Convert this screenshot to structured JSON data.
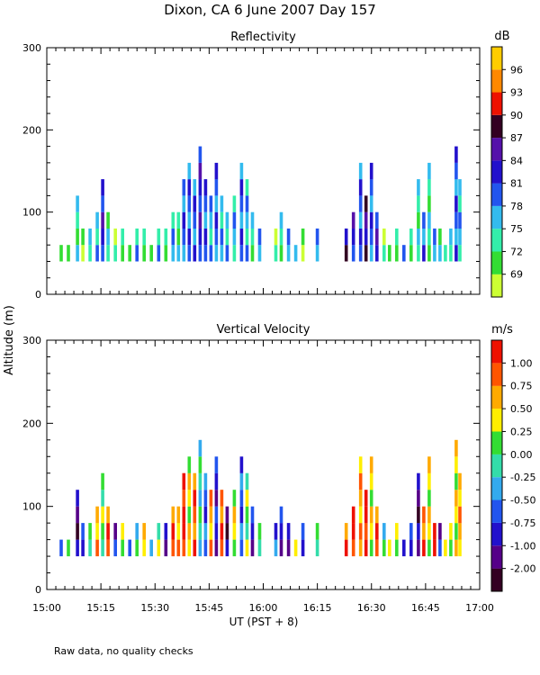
{
  "title": "Dixon, CA  6 June 2007  Day 157",
  "footnote": "Raw data, no quality checks",
  "shared_ylabel": "Altitude (m)",
  "xlabel": "UT  (PST + 8)",
  "chart_data": [
    {
      "type": "heatmap",
      "title": "Reflectivity",
      "ylabel": "Altitude (m)",
      "xlabel": "UT  (PST + 8)",
      "x_range_minutes": [
        900,
        1020
      ],
      "y_range_m": [
        0,
        300
      ],
      "xticks": [
        "15:00",
        "15:15",
        "15:30",
        "15:45",
        "16:00",
        "16:15",
        "16:30",
        "16:45",
        "17:00"
      ],
      "xtick_minutes": [
        900,
        915,
        930,
        945,
        960,
        975,
        990,
        1005,
        1020
      ],
      "yticks": [
        0,
        100,
        200,
        300
      ],
      "colorbar": {
        "units": "dB",
        "labels": [
          "69",
          "72",
          "75",
          "78",
          "81",
          "84",
          "87",
          "90",
          "93",
          "96"
        ],
        "colors": [
          "#ccff33",
          "#33dd33",
          "#33eeaa",
          "#33bbee",
          "#2255ee",
          "#2211cc",
          "#5511aa",
          "#330022",
          "#ee1100",
          "#ff8800",
          "#ffcc00"
        ]
      },
      "echo_columns": [
        {
          "t": 904,
          "top": 60,
          "cat": 2
        },
        {
          "t": 906,
          "top": 60,
          "cat": 1
        },
        {
          "t": 908.5,
          "top": 120,
          "cat": 2
        },
        {
          "t": 910,
          "top": 80,
          "cat": 1
        },
        {
          "t": 912,
          "top": 80,
          "cat": 2
        },
        {
          "t": 914,
          "top": 100,
          "cat": 3
        },
        {
          "t": 915.5,
          "top": 140,
          "cat": 5
        },
        {
          "t": 917,
          "top": 100,
          "cat": 2
        },
        {
          "t": 919,
          "top": 80,
          "cat": 1
        },
        {
          "t": 921,
          "top": 80,
          "cat": 2
        },
        {
          "t": 923,
          "top": 60,
          "cat": 1
        },
        {
          "t": 925,
          "top": 80,
          "cat": 3
        },
        {
          "t": 927,
          "top": 80,
          "cat": 2
        },
        {
          "t": 929,
          "top": 60,
          "cat": 1
        },
        {
          "t": 931,
          "top": 80,
          "cat": 3
        },
        {
          "t": 933,
          "top": 80,
          "cat": 2
        },
        {
          "t": 935,
          "top": 100,
          "cat": 3
        },
        {
          "t": 936.5,
          "top": 100,
          "cat": 2
        },
        {
          "t": 938,
          "top": 140,
          "cat": 4
        },
        {
          "t": 939.5,
          "top": 160,
          "cat": 4
        },
        {
          "t": 941,
          "top": 140,
          "cat": 4
        },
        {
          "t": 942.5,
          "top": 180,
          "cat": 5
        },
        {
          "t": 944,
          "top": 140,
          "cat": 4
        },
        {
          "t": 945.5,
          "top": 120,
          "cat": 3
        },
        {
          "t": 947,
          "top": 160,
          "cat": 4
        },
        {
          "t": 948.5,
          "top": 120,
          "cat": 3
        },
        {
          "t": 950,
          "top": 100,
          "cat": 3
        },
        {
          "t": 952,
          "top": 120,
          "cat": 3
        },
        {
          "t": 954,
          "top": 160,
          "cat": 4
        },
        {
          "t": 955.5,
          "top": 140,
          "cat": 3
        },
        {
          "t": 957,
          "top": 100,
          "cat": 2
        },
        {
          "t": 959,
          "top": 80,
          "cat": 3
        },
        {
          "t": 963.5,
          "top": 80,
          "cat": 1
        },
        {
          "t": 965,
          "top": 100,
          "cat": 2
        },
        {
          "t": 967,
          "top": 80,
          "cat": 3
        },
        {
          "t": 969,
          "top": 60,
          "cat": 2
        },
        {
          "t": 971,
          "top": 80,
          "cat": 1
        },
        {
          "t": 975,
          "top": 80,
          "cat": 3
        },
        {
          "t": 983,
          "top": 80,
          "cat": 6
        },
        {
          "t": 985,
          "top": 100,
          "cat": 5
        },
        {
          "t": 987,
          "top": 160,
          "cat": 4
        },
        {
          "t": 988.5,
          "top": 120,
          "cat": 6
        },
        {
          "t": 990,
          "top": 160,
          "cat": 4
        },
        {
          "t": 991.5,
          "top": 100,
          "cat": 5
        },
        {
          "t": 993.5,
          "top": 80,
          "cat": 1
        },
        {
          "t": 995,
          "top": 60,
          "cat": 2
        },
        {
          "t": 997,
          "top": 80,
          "cat": 1
        },
        {
          "t": 999,
          "top": 60,
          "cat": 3
        },
        {
          "t": 1001,
          "top": 80,
          "cat": 2
        },
        {
          "t": 1003,
          "top": 140,
          "cat": 2
        },
        {
          "t": 1004.5,
          "top": 100,
          "cat": 4
        },
        {
          "t": 1006,
          "top": 160,
          "cat": 2
        },
        {
          "t": 1007.5,
          "top": 80,
          "cat": 3
        },
        {
          "t": 1009,
          "top": 80,
          "cat": 2
        },
        {
          "t": 1010.5,
          "top": 60,
          "cat": 3
        },
        {
          "t": 1012,
          "top": 80,
          "cat": 2
        },
        {
          "t": 1013.5,
          "top": 180,
          "cat": 4
        },
        {
          "t": 1014.5,
          "top": 140,
          "cat": 3
        }
      ]
    },
    {
      "type": "heatmap",
      "title": "Vertical Velocity",
      "ylabel": "Altitude (m)",
      "xlabel": "UT  (PST + 8)",
      "x_range_minutes": [
        900,
        1020
      ],
      "y_range_m": [
        0,
        300
      ],
      "xticks": [
        "15:00",
        "15:15",
        "15:30",
        "15:45",
        "16:00",
        "16:15",
        "16:30",
        "16:45",
        "17:00"
      ],
      "xtick_minutes": [
        900,
        915,
        930,
        945,
        960,
        975,
        990,
        1005,
        1020
      ],
      "yticks": [
        0,
        100,
        200,
        300
      ],
      "colorbar": {
        "units": "m/s",
        "labels": [
          "-2.00",
          "-1.00",
          "-0.75",
          "-0.50",
          "-0.25",
          "0.00",
          "0.25",
          "0.50",
          "0.75",
          "1.00"
        ],
        "colors": [
          "#330022",
          "#550088",
          "#2211cc",
          "#2255ee",
          "#33aaee",
          "#33ddaa",
          "#33dd33",
          "#ffee00",
          "#ffaa00",
          "#ff5500",
          "#ee1100"
        ]
      },
      "echo_columns": [
        {
          "t": 904,
          "top": 60,
          "cat": 4
        },
        {
          "t": 906,
          "top": 60,
          "cat": 6
        },
        {
          "t": 908.5,
          "top": 120,
          "cat": 1
        },
        {
          "t": 910,
          "top": 80,
          "cat": 3
        },
        {
          "t": 912,
          "top": 80,
          "cat": 5
        },
        {
          "t": 914,
          "top": 100,
          "cat": 8
        },
        {
          "t": 915.5,
          "top": 140,
          "cat": 6
        },
        {
          "t": 917,
          "top": 100,
          "cat": 9
        },
        {
          "t": 919,
          "top": 80,
          "cat": 2
        },
        {
          "t": 921,
          "top": 80,
          "cat": 7
        },
        {
          "t": 923,
          "top": 60,
          "cat": 3
        },
        {
          "t": 925,
          "top": 80,
          "cat": 5
        },
        {
          "t": 927,
          "top": 80,
          "cat": 8
        },
        {
          "t": 929,
          "top": 60,
          "cat": 4
        },
        {
          "t": 931,
          "top": 80,
          "cat": 6
        },
        {
          "t": 933,
          "top": 80,
          "cat": 2
        },
        {
          "t": 935,
          "top": 100,
          "cat": 9
        },
        {
          "t": 936.5,
          "top": 100,
          "cat": 8
        },
        {
          "t": 938,
          "top": 140,
          "cat": 10
        },
        {
          "t": 939.5,
          "top": 160,
          "cat": 7
        },
        {
          "t": 941,
          "top": 140,
          "cat": 9
        },
        {
          "t": 942.5,
          "top": 180,
          "cat": 5
        },
        {
          "t": 944,
          "top": 140,
          "cat": 3
        },
        {
          "t": 945.5,
          "top": 120,
          "cat": 8
        },
        {
          "t": 947,
          "top": 160,
          "cat": 2
        },
        {
          "t": 948.5,
          "top": 120,
          "cat": 9
        },
        {
          "t": 950,
          "top": 100,
          "cat": 1
        },
        {
          "t": 952,
          "top": 120,
          "cat": 7
        },
        {
          "t": 954,
          "top": 160,
          "cat": 3
        },
        {
          "t": 955.5,
          "top": 140,
          "cat": 6
        },
        {
          "t": 957,
          "top": 100,
          "cat": 2
        },
        {
          "t": 959,
          "top": 80,
          "cat": 5
        },
        {
          "t": 963.5,
          "top": 80,
          "cat": 3
        },
        {
          "t": 965,
          "top": 100,
          "cat": 2
        },
        {
          "t": 967,
          "top": 80,
          "cat": 1
        },
        {
          "t": 969,
          "top": 60,
          "cat": 6
        },
        {
          "t": 971,
          "top": 80,
          "cat": 3
        },
        {
          "t": 975,
          "top": 80,
          "cat": 5
        },
        {
          "t": 983,
          "top": 80,
          "cat": 9
        },
        {
          "t": 985,
          "top": 100,
          "cat": 10
        },
        {
          "t": 987,
          "top": 160,
          "cat": 8
        },
        {
          "t": 988.5,
          "top": 120,
          "cat": 10
        },
        {
          "t": 990,
          "top": 160,
          "cat": 7
        },
        {
          "t": 991.5,
          "top": 100,
          "cat": 9
        },
        {
          "t": 993.5,
          "top": 80,
          "cat": 5
        },
        {
          "t": 995,
          "top": 60,
          "cat": 8
        },
        {
          "t": 997,
          "top": 80,
          "cat": 6
        },
        {
          "t": 999,
          "top": 60,
          "cat": 1
        },
        {
          "t": 1001,
          "top": 80,
          "cat": 3
        },
        {
          "t": 1003,
          "top": 140,
          "cat": 1
        },
        {
          "t": 1004.5,
          "top": 100,
          "cat": 9
        },
        {
          "t": 1006,
          "top": 160,
          "cat": 7
        },
        {
          "t": 1007.5,
          "top": 80,
          "cat": 10
        },
        {
          "t": 1009,
          "top": 80,
          "cat": 2
        },
        {
          "t": 1010.5,
          "top": 60,
          "cat": 8
        },
        {
          "t": 1012,
          "top": 80,
          "cat": 6
        },
        {
          "t": 1013.5,
          "top": 180,
          "cat": 7
        },
        {
          "t": 1014.5,
          "top": 140,
          "cat": 8
        }
      ]
    }
  ]
}
